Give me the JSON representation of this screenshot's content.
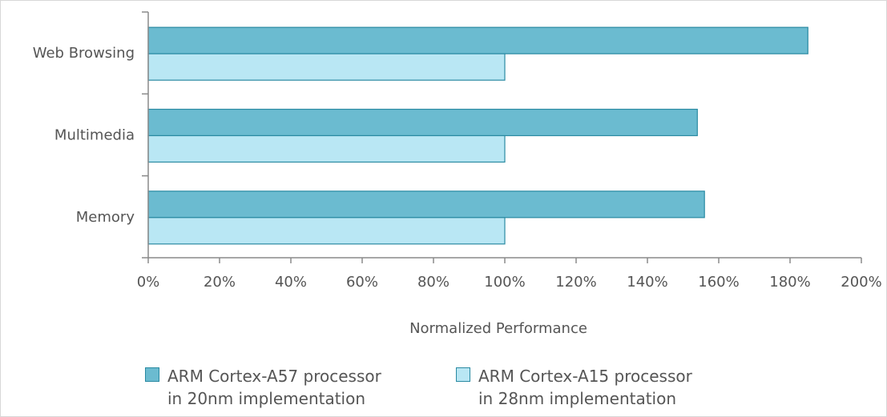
{
  "chart_data": {
    "type": "bar",
    "orientation": "horizontal",
    "categories": [
      "Web Browsing",
      "Multimedia",
      "Memory"
    ],
    "series": [
      {
        "name": "ARM Cortex-A57 processor in 20nm implementation",
        "legend_lines": [
          "ARM Cortex-A57 processor",
          "in 20nm implementation"
        ],
        "color": "#6bbbd0",
        "values": [
          185,
          154,
          156
        ]
      },
      {
        "name": "ARM Cortex-A15 processor in 28nm implementation",
        "legend_lines": [
          "ARM Cortex-A15 processor",
          "in 28nm implementation"
        ],
        "color": "#b9e7f4",
        "values": [
          100,
          100,
          100
        ]
      }
    ],
    "xlim": [
      0,
      200
    ],
    "xticks": [
      0,
      20,
      40,
      60,
      80,
      100,
      120,
      140,
      160,
      180,
      200
    ],
    "tick_format": "%",
    "xlabel": "Normalized Performance",
    "ylabel": "",
    "title": "",
    "grid": false,
    "legend_position": "bottom"
  }
}
